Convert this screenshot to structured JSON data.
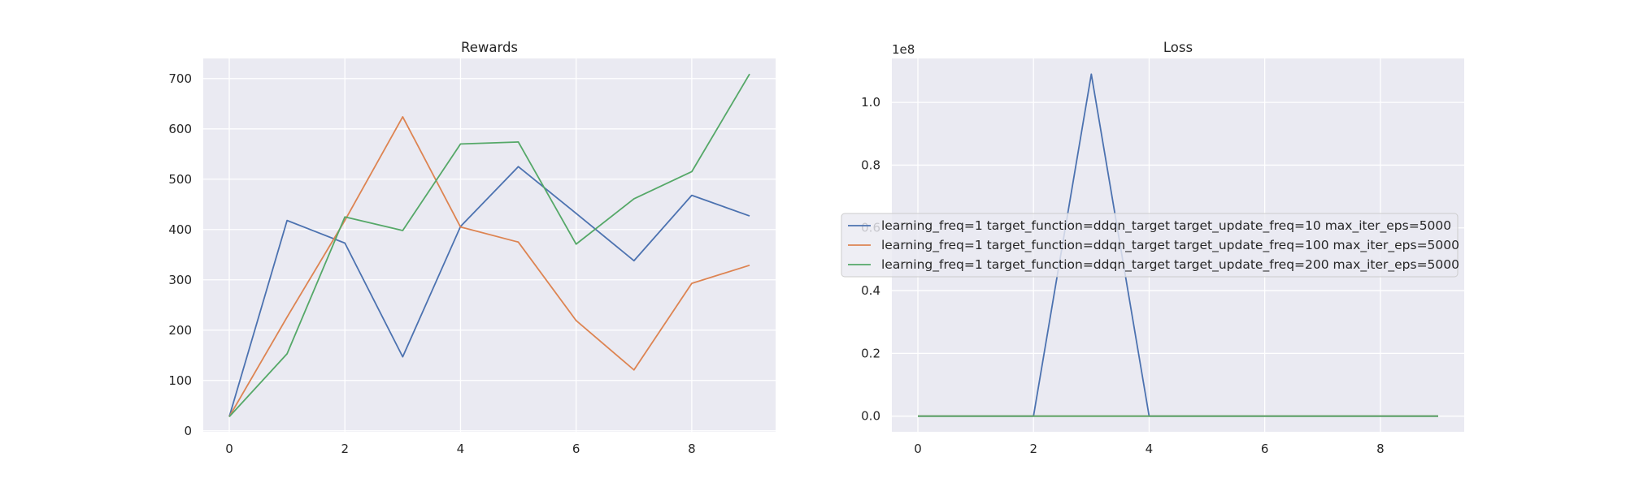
{
  "chart_data": [
    {
      "type": "line",
      "title": "Rewards",
      "xlabel": "",
      "ylabel": "",
      "x": [
        0,
        1,
        2,
        3,
        4,
        5,
        6,
        7,
        8,
        9
      ],
      "xticks": [
        0,
        2,
        4,
        6,
        8
      ],
      "yticks": [
        0,
        100,
        200,
        300,
        400,
        500,
        600,
        700
      ],
      "ytick_labels": [
        "0",
        "100",
        "200",
        "300",
        "400",
        "500",
        "600",
        "700"
      ],
      "xlim": [
        -0.45,
        9.45
      ],
      "ylim": [
        -2,
        740
      ],
      "grid": true,
      "series": [
        {
          "values": [
            28,
            418,
            373,
            147,
            406,
            525,
            432,
            338,
            468,
            427
          ]
        },
        {
          "values": [
            28,
            226,
            418,
            624,
            405,
            375,
            219,
            121,
            293,
            329
          ]
        },
        {
          "values": [
            28,
            153,
            425,
            398,
            570,
            574,
            371,
            461,
            515,
            709
          ]
        }
      ]
    },
    {
      "type": "line",
      "title": "Loss",
      "offset_text": "1e8",
      "xlabel": "",
      "ylabel": "",
      "x": [
        0,
        1,
        2,
        3,
        4,
        5,
        6,
        7,
        8,
        9
      ],
      "xticks": [
        0,
        2,
        4,
        6,
        8
      ],
      "yticks": [
        0,
        0.2,
        0.4,
        0.6,
        0.8,
        1.0
      ],
      "ytick_labels": [
        "0.0",
        "0.2",
        "0.4",
        "0.6",
        "0.8",
        "1.0"
      ],
      "xlim": [
        -0.45,
        9.45
      ],
      "ylim": [
        -0.05,
        1.14
      ],
      "grid": true,
      "legend_position": "center",
      "series": [
        {
          "values": [
            0,
            0,
            0,
            1.09,
            0,
            0,
            0,
            0,
            0,
            0
          ]
        },
        {
          "values": [
            0,
            0,
            0,
            0,
            0,
            0,
            0,
            0,
            0,
            0
          ]
        },
        {
          "values": [
            0,
            0,
            0,
            0,
            0,
            0,
            0,
            0,
            0,
            0
          ]
        }
      ]
    }
  ],
  "legend": [
    {
      "label": "learning_freq=1 target_function=ddqn_target target_update_freq=10 max_iter_eps=5000",
      "color": "#4c72b0"
    },
    {
      "label": "learning_freq=1 target_function=ddqn_target target_update_freq=100 max_iter_eps=5000",
      "color": "#dd8452"
    },
    {
      "label": "learning_freq=1 target_function=ddqn_target target_update_freq=200 max_iter_eps=5000",
      "color": "#55a868"
    }
  ],
  "colors": {
    "plot_background": "#eaeaf2",
    "grid": "#ffffff",
    "text": "#262626"
  }
}
